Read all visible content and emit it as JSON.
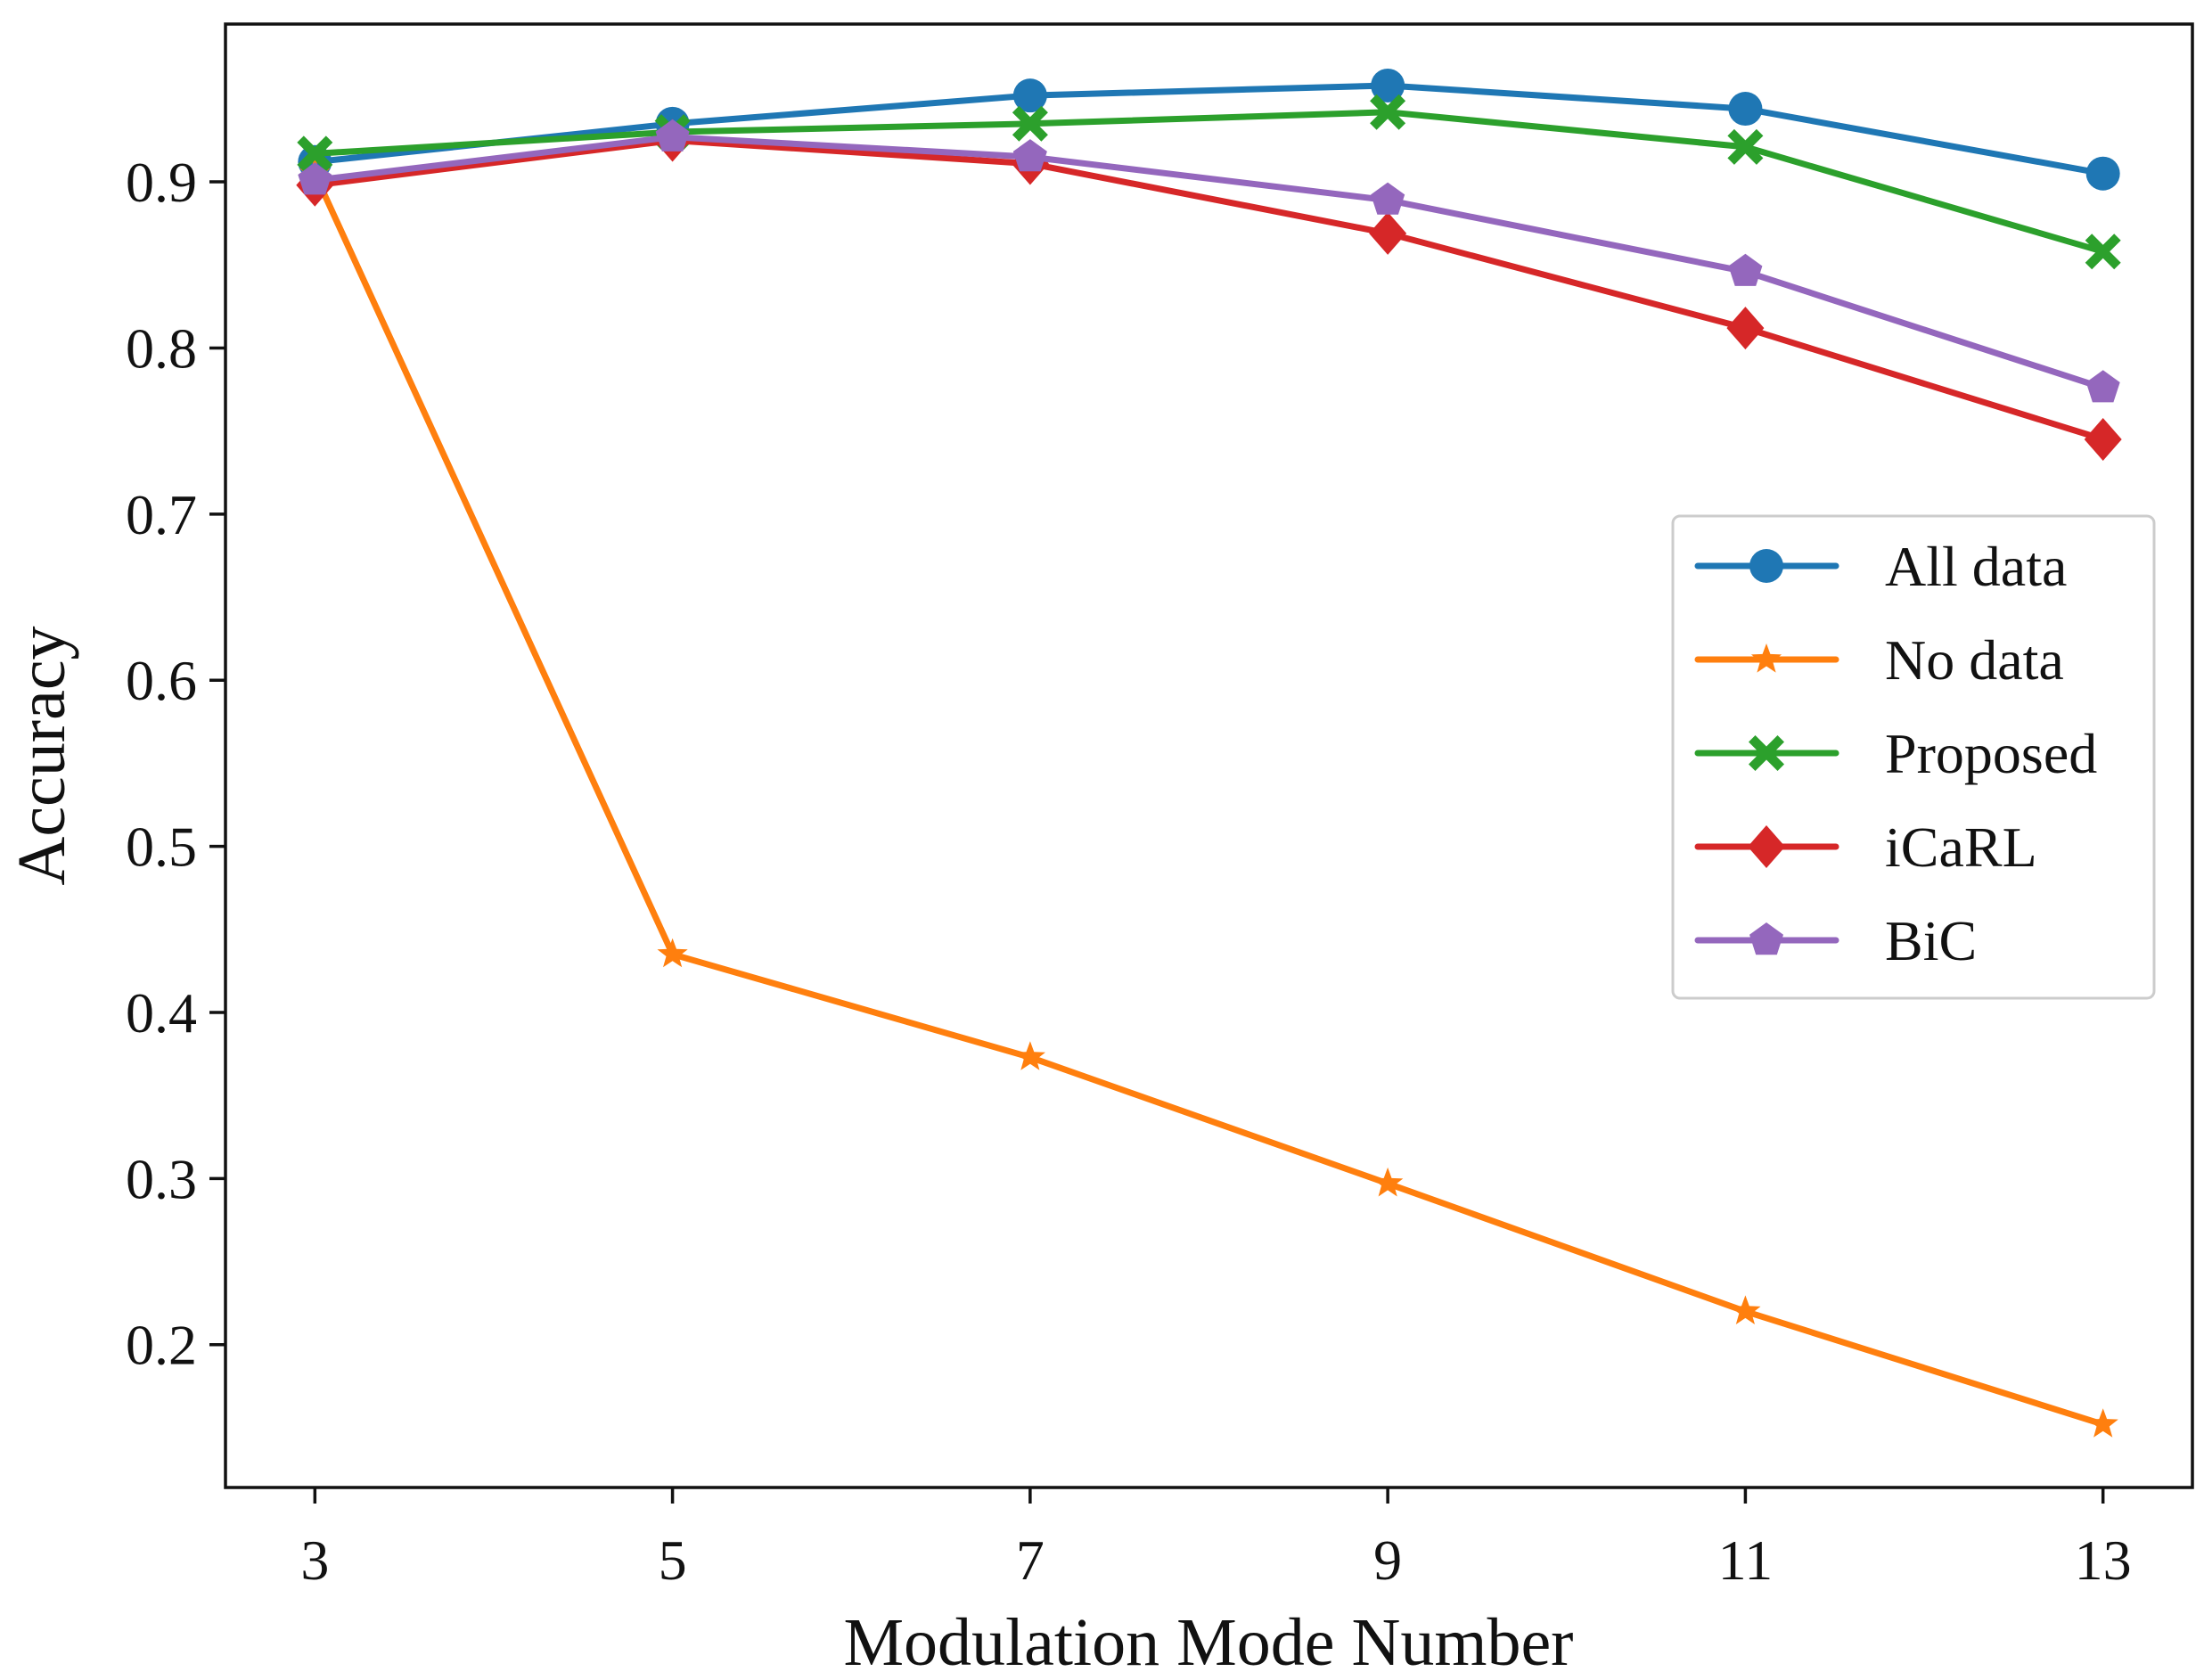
{
  "chart_data": {
    "type": "line",
    "title": "",
    "xlabel": "Modulation Mode Number",
    "ylabel": "Accuracy",
    "x": [
      3,
      5,
      7,
      9,
      11,
      13
    ],
    "x_ticks": [
      "3",
      "5",
      "7",
      "9",
      "11",
      "13"
    ],
    "xlim": [
      2.5,
      13.5
    ],
    "y_ticks": [
      "0.2",
      "0.3",
      "0.4",
      "0.5",
      "0.6",
      "0.7",
      "0.8",
      "0.9"
    ],
    "ylim": [
      0.114,
      0.995
    ],
    "grid": false,
    "legend_position": "center-right",
    "series": [
      {
        "name": "All data",
        "marker": "circle",
        "color": "#1f77b4",
        "values": [
          0.912,
          0.935,
          0.952,
          0.958,
          0.944,
          0.905
        ]
      },
      {
        "name": "No data",
        "marker": "star",
        "color": "#ff7f0e",
        "values": [
          0.905,
          0.435,
          0.373,
          0.297,
          0.22,
          0.152
        ]
      },
      {
        "name": "Proposed",
        "marker": "x-filled",
        "color": "#2ca02c",
        "values": [
          0.917,
          0.93,
          0.935,
          0.942,
          0.921,
          0.858
        ]
      },
      {
        "name": "iCaRL",
        "marker": "diamond",
        "color": "#d62728",
        "values": [
          0.898,
          0.925,
          0.911,
          0.869,
          0.812,
          0.745
        ]
      },
      {
        "name": "BiC",
        "marker": "pentagon",
        "color": "#9467bd",
        "values": [
          0.901,
          0.927,
          0.915,
          0.889,
          0.846,
          0.776
        ]
      }
    ]
  }
}
